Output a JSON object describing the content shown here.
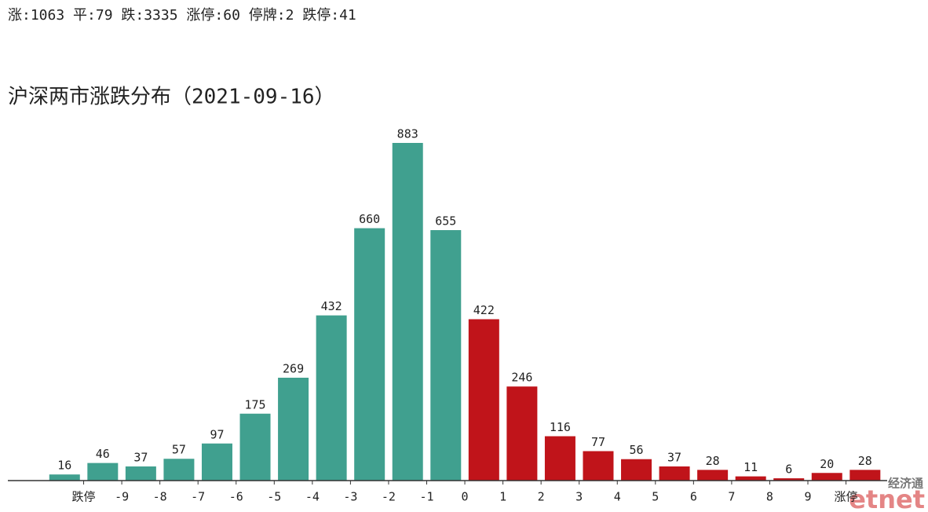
{
  "header": "涨:1063 平:79 跌:3335 涨停:60 停牌:2 跌停:41",
  "watermark": {
    "top": "经济通",
    "brand": "etnet"
  },
  "chart_data": {
    "type": "bar",
    "title": "沪深两市涨跌分布（2021-09-16）",
    "values": [
      16,
      46,
      37,
      57,
      97,
      175,
      269,
      432,
      660,
      883,
      655,
      422,
      246,
      116,
      77,
      56,
      37,
      28,
      11,
      6,
      20,
      28
    ],
    "colors": [
      "#40a08f",
      "#40a08f",
      "#40a08f",
      "#40a08f",
      "#40a08f",
      "#40a08f",
      "#40a08f",
      "#40a08f",
      "#40a08f",
      "#40a08f",
      "#40a08f",
      "#c0141a",
      "#c0141a",
      "#c0141a",
      "#c0141a",
      "#c0141a",
      "#c0141a",
      "#c0141a",
      "#c0141a",
      "#c0141a",
      "#c0141a",
      "#c0141a"
    ],
    "boundary_labels": [
      "跌停",
      "-9",
      "-8",
      "-7",
      "-6",
      "-5",
      "-4",
      "-3",
      "-2",
      "-1",
      "0",
      "1",
      "2",
      "3",
      "4",
      "5",
      "6",
      "7",
      "8",
      "9",
      "涨停"
    ],
    "ylim": [
      0,
      900
    ]
  }
}
